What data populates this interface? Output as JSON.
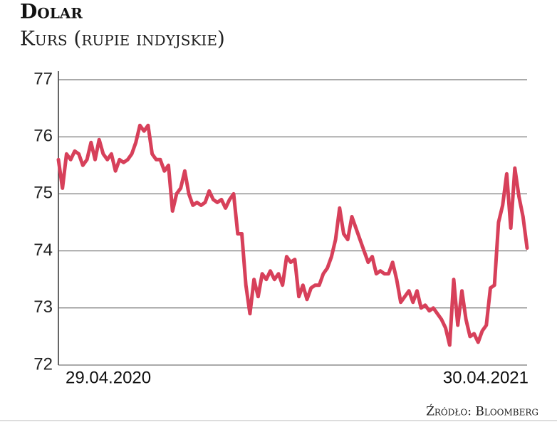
{
  "chart_data": {
    "type": "line",
    "title": "Dolar",
    "subtitle": "Kurs (rupie indyjskie)",
    "source": "Źródło: Bloomberg",
    "color": "#d7405a",
    "categories": [
      "29.04.2020",
      null,
      null,
      null,
      null,
      null,
      null,
      null,
      null,
      null,
      null,
      null,
      null,
      null,
      null,
      null,
      null,
      null,
      null,
      null,
      null,
      null,
      null,
      null,
      null,
      null,
      null,
      null,
      null,
      null,
      null,
      null,
      null,
      null,
      null,
      null,
      null,
      null,
      null,
      null,
      null,
      null,
      null,
      null,
      null,
      null,
      null,
      null,
      null,
      null,
      null,
      null,
      null,
      null,
      null,
      null,
      null,
      null,
      null,
      null,
      null,
      null,
      null,
      null,
      null,
      null,
      null,
      null,
      null,
      null,
      null,
      null,
      null,
      null,
      null,
      null,
      null,
      null,
      null,
      null,
      null,
      null,
      null,
      null,
      null,
      null,
      null,
      null,
      null,
      null,
      null,
      null,
      null,
      null,
      null,
      null,
      null,
      null,
      null,
      null,
      null,
      null,
      null,
      null,
      null,
      null,
      null,
      null,
      null,
      null,
      null,
      null,
      null,
      null,
      null,
      "30.04.2021"
    ],
    "values": [
      75.6,
      75.1,
      75.7,
      75.6,
      75.75,
      75.7,
      75.5,
      75.6,
      75.9,
      75.6,
      75.95,
      75.7,
      75.6,
      75.7,
      75.4,
      75.6,
      75.55,
      75.6,
      75.7,
      75.9,
      76.2,
      76.1,
      76.2,
      75.7,
      75.6,
      75.6,
      75.4,
      75.5,
      74.7,
      75.0,
      75.1,
      75.4,
      75.0,
      74.8,
      74.85,
      74.8,
      74.85,
      75.05,
      74.9,
      74.85,
      74.9,
      74.75,
      74.9,
      75.0,
      74.3,
      74.3,
      73.4,
      72.9,
      73.5,
      73.2,
      73.6,
      73.5,
      73.65,
      73.5,
      73.6,
      73.4,
      73.9,
      73.8,
      73.85,
      73.2,
      73.4,
      73.15,
      73.35,
      73.4,
      73.4,
      73.6,
      73.7,
      73.9,
      74.2,
      74.75,
      74.3,
      74.2,
      74.6,
      74.4,
      74.2,
      74.0,
      73.8,
      73.9,
      73.6,
      73.65,
      73.6,
      73.6,
      73.8,
      73.5,
      73.1,
      73.2,
      73.3,
      73.1,
      73.3,
      73.0,
      73.05,
      72.95,
      73.0,
      72.9,
      72.8,
      72.65,
      72.35,
      73.5,
      72.7,
      73.3,
      72.8,
      72.5,
      72.55,
      72.4,
      72.6,
      72.7,
      73.35,
      73.4,
      74.5,
      74.8,
      75.35,
      74.4,
      75.45,
      74.95,
      74.6,
      74.05
    ],
    "ylim": [
      72,
      77
    ],
    "yticks": [
      72,
      73,
      74,
      75,
      76,
      77
    ],
    "grid": true
  }
}
